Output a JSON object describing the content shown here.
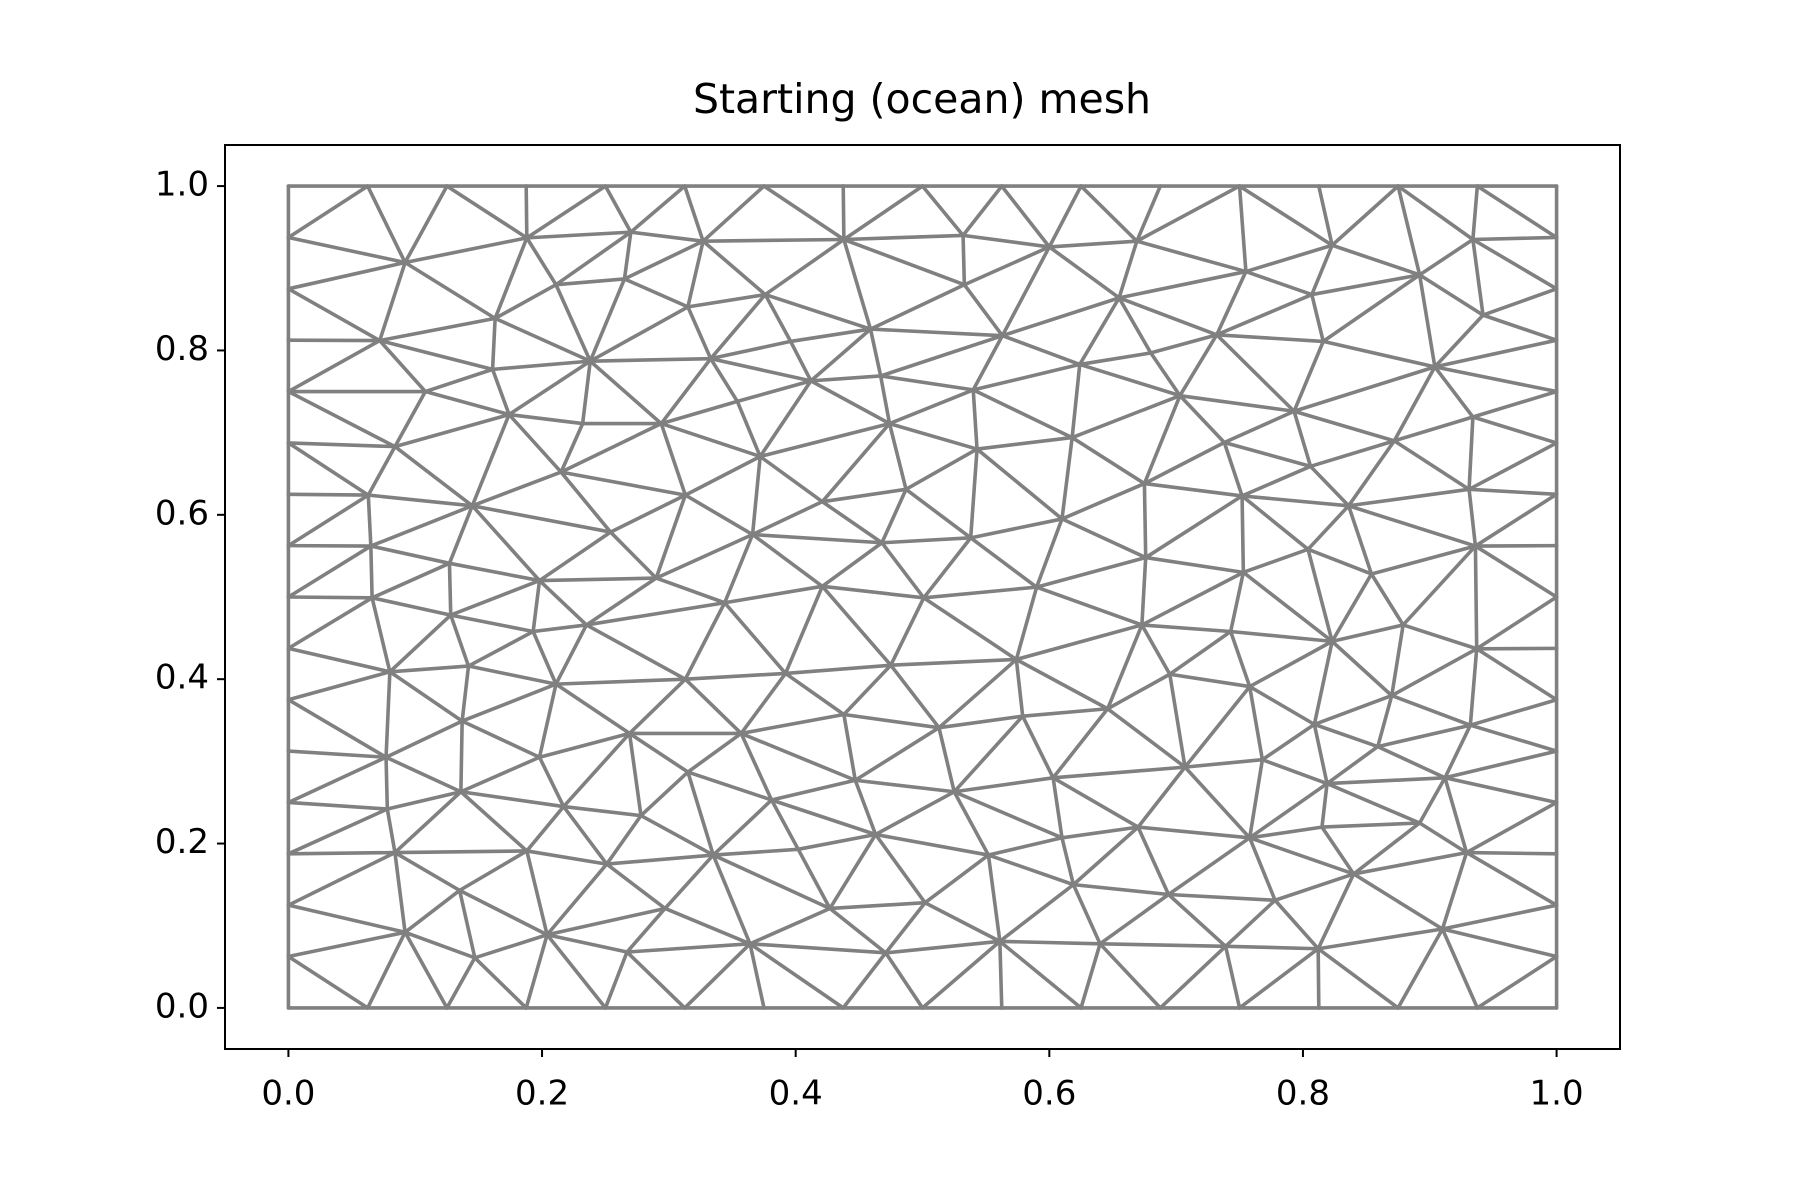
{
  "chart_data": {
    "type": "triplot",
    "title": "Starting (ocean) mesh",
    "color": "#808080",
    "x": [
      0,
      0.0625,
      0.125,
      0.1875,
      0.25,
      0.3125,
      0.375,
      0.4375,
      0.5,
      0.5625,
      0.625,
      0.6875,
      0.75,
      0.8125,
      0.875,
      0.9375,
      1,
      0,
      0.0625,
      0.125,
      0.1875,
      0.25,
      0.3125,
      0.375,
      0.4375,
      0.5,
      0.5625,
      0.625,
      0.6875,
      0.75,
      0.8125,
      0.875,
      0.9375,
      1,
      0,
      0,
      0,
      0,
      0,
      0,
      0,
      0,
      0,
      0,
      0,
      0,
      0,
      0,
      0,
      1,
      1,
      1,
      1,
      1,
      1,
      1,
      1,
      1,
      1,
      1,
      1,
      1,
      1,
      1,
      0.092,
      0.188,
      0.27,
      0.327,
      0.438,
      0.532,
      0.6,
      0.669,
      0.755,
      0.823,
      0.892,
      0.934,
      0.942,
      0.211,
      0.265,
      0.315,
      0.376,
      0.533,
      0.655,
      0.807,
      0.163,
      0.072,
      0.238,
      0.333,
      0.396,
      0.459,
      0.563,
      0.68,
      0.732,
      0.816,
      0.161,
      0.624,
      0.904,
      0.108,
      0.467,
      0.54,
      0.703,
      0.793,
      0.412,
      0.174,
      0.232,
      0.294,
      0.354,
      0.474,
      0.618,
      0.738,
      0.872,
      0.934,
      0.084,
      0.215,
      0.372,
      0.543,
      0.806,
      0.063,
      0.145,
      0.313,
      0.421,
      0.487,
      0.61,
      0.675,
      0.752,
      0.836,
      0.931,
      0.254,
      0.366,
      0.468,
      0.538,
      0.804,
      0.065,
      0.127,
      0.676,
      0.29,
      0.198,
      0.421,
      0.753,
      0.854,
      0.936,
      0.066,
      0.59,
      0.501,
      0.344,
      0.128,
      0.235,
      0.193,
      0.673,
      0.879,
      0.743,
      0.823,
      0.08,
      0.142,
      0.211,
      0.313,
      0.392,
      0.475,
      0.574,
      0.695,
      0.758,
      0.937,
      0.87,
      0.137,
      0.269,
      0.357,
      0.438,
      0.513,
      0.579,
      0.646,
      0.809,
      0.932,
      0.077,
      0.198,
      0.707,
      0.768,
      0.859,
      0.315,
      0.603,
      0.447,
      0.136,
      0.525,
      0.819,
      0.912,
      0.217,
      0.278,
      0.381,
      0.078,
      0.67,
      0.815,
      0.892,
      0.463,
      0.61,
      0.758,
      0.084,
      0.188,
      0.251,
      0.335,
      0.552,
      0.402,
      0.929,
      0.84,
      0.619,
      0.135,
      0.297,
      0.427,
      0.502,
      0.694,
      0.778,
      0.91,
      0.092,
      0.204,
      0.364,
      0.561,
      0.739,
      0.267,
      0.147,
      0.471,
      0.64,
      0.812
    ],
    "y": [
      0,
      0,
      0,
      0,
      0,
      0,
      0,
      0,
      0,
      0,
      0,
      0,
      0,
      0,
      0,
      0,
      0,
      1,
      1,
      1,
      1,
      1,
      1,
      1,
      1,
      1,
      1,
      1,
      1,
      1,
      1,
      1,
      1,
      1,
      0.0625,
      0.125,
      0.1875,
      0.25,
      0.3125,
      0.375,
      0.4375,
      0.5,
      0.5625,
      0.625,
      0.6875,
      0.75,
      0.8125,
      0.875,
      0.9375,
      0.0625,
      0.125,
      0.1875,
      0.25,
      0.3125,
      0.375,
      0.4375,
      0.5,
      0.5625,
      0.625,
      0.6875,
      0.75,
      0.8125,
      0.875,
      0.9375,
      0.907,
      0.937,
      0.944,
      0.933,
      0.935,
      0.94,
      0.926,
      0.933,
      0.896,
      0.928,
      0.892,
      0.935,
      0.843,
      0.88,
      0.887,
      0.853,
      0.868,
      0.88,
      0.864,
      0.868,
      0.839,
      0.812,
      0.787,
      0.79,
      0.811,
      0.826,
      0.818,
      0.797,
      0.819,
      0.811,
      0.777,
      0.783,
      0.78,
      0.75,
      0.769,
      0.752,
      0.745,
      0.726,
      0.763,
      0.722,
      0.711,
      0.711,
      0.738,
      0.711,
      0.694,
      0.688,
      0.69,
      0.719,
      0.683,
      0.652,
      0.671,
      0.68,
      0.659,
      0.624,
      0.611,
      0.624,
      0.616,
      0.631,
      0.595,
      0.638,
      0.623,
      0.611,
      0.631,
      0.579,
      0.576,
      0.566,
      0.572,
      0.558,
      0.562,
      0.541,
      0.548,
      0.523,
      0.52,
      0.513,
      0.53,
      0.528,
      0.562,
      0.499,
      0.512,
      0.499,
      0.493,
      0.478,
      0.466,
      0.458,
      0.466,
      0.466,
      0.458,
      0.446,
      0.409,
      0.416,
      0.394,
      0.4,
      0.407,
      0.417,
      0.424,
      0.406,
      0.391,
      0.437,
      0.38,
      0.349,
      0.334,
      0.334,
      0.357,
      0.341,
      0.355,
      0.364,
      0.345,
      0.344,
      0.305,
      0.305,
      0.293,
      0.302,
      0.318,
      0.287,
      0.28,
      0.277,
      0.263,
      0.263,
      0.273,
      0.28,
      0.245,
      0.234,
      0.253,
      0.242,
      0.22,
      0.22,
      0.225,
      0.211,
      0.207,
      0.207,
      0.189,
      0.191,
      0.175,
      0.186,
      0.186,
      0.193,
      0.189,
      0.163,
      0.15,
      0.143,
      0.121,
      0.121,
      0.128,
      0.138,
      0.131,
      0.096,
      0.092,
      0.089,
      0.078,
      0.081,
      0.075,
      0.068,
      0.061,
      0.067,
      0.078,
      0.072
    ],
    "xlim": [
      -0.05,
      1.05
    ],
    "ylim": [
      -0.05,
      1.05
    ],
    "xticks": [
      {
        "value": 0,
        "label": "0.0"
      },
      0.2,
      0.4,
      0.6,
      0.8,
      {
        "value": 1,
        "label": "1.0"
      }
    ],
    "yticks": [
      {
        "value": 0,
        "label": "0.0"
      },
      0.2,
      0.4,
      0.6,
      0.8,
      {
        "value": 1,
        "label": "1.0"
      }
    ]
  }
}
